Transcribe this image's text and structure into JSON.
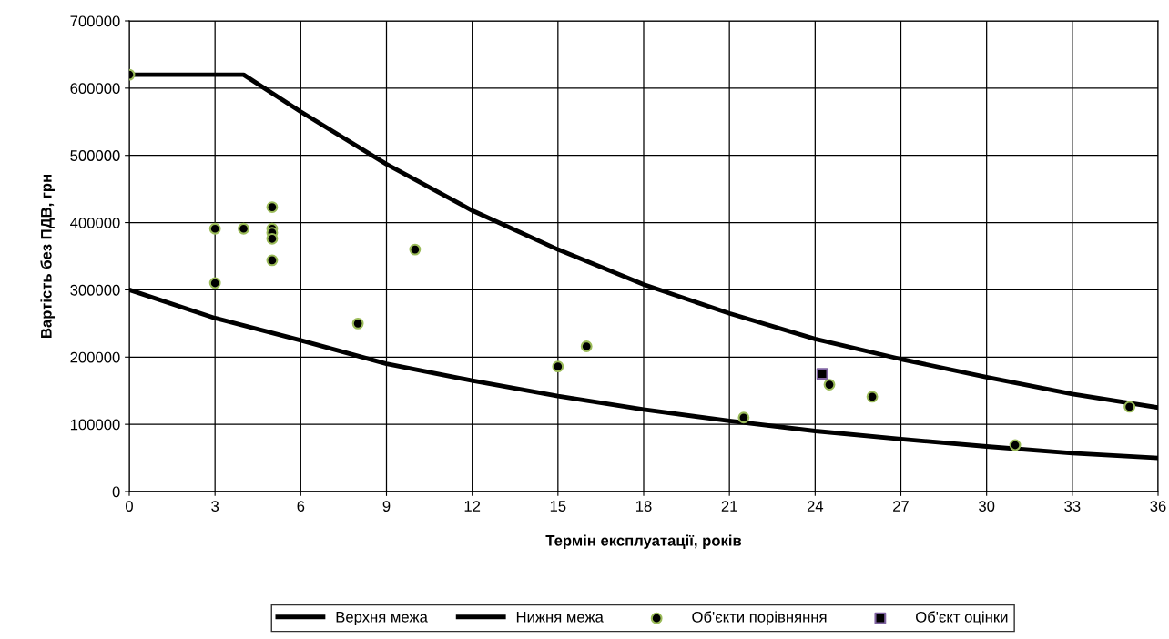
{
  "chart_data": {
    "type": "line",
    "xlabel": "Термін експлуатації, років",
    "ylabel": "Вартість без ПДВ, грн",
    "xlim": [
      0,
      36
    ],
    "xticks": [
      0,
      3,
      6,
      9,
      12,
      15,
      18,
      21,
      24,
      27,
      30,
      33,
      36
    ],
    "ylim": [
      0,
      700000
    ],
    "yticks": [
      0,
      100000,
      200000,
      300000,
      400000,
      500000,
      600000,
      700000
    ],
    "grid": true,
    "legend": "bottom",
    "series": [
      {
        "name": "Верхня межа",
        "color": "#000000",
        "marker": "none",
        "x": [
          0,
          4,
          6,
          9,
          12,
          15,
          18,
          21,
          24,
          27,
          30,
          33,
          36
        ],
        "values": [
          620000,
          620000,
          565000,
          487000,
          418000,
          360000,
          308000,
          265000,
          227000,
          197000,
          170000,
          145000,
          125000
        ]
      },
      {
        "name": "Нижня межа",
        "color": "#000000",
        "marker": "none",
        "x": [
          0,
          3,
          6,
          9,
          12,
          15,
          18,
          21,
          24,
          27,
          30,
          33,
          36
        ],
        "values": [
          300000,
          258000,
          225000,
          190000,
          165000,
          142000,
          122000,
          105000,
          90000,
          78000,
          67000,
          57000,
          50000
        ]
      },
      {
        "name": "Об'єкти порівняння",
        "type": "scatter",
        "color": "#9bbb59",
        "marker": "circle",
        "x": [
          0,
          3,
          3,
          4,
          5,
          5,
          5,
          5,
          5,
          8,
          10,
          15,
          16,
          21.5,
          24.5,
          26,
          31,
          35
        ],
        "values": [
          620000,
          391000,
          310000,
          391000,
          423000,
          391000,
          385000,
          376000,
          344000,
          250000,
          360000,
          186000,
          216000,
          110000,
          159000,
          141000,
          69000,
          126000
        ]
      },
      {
        "name": "Об'єкт оцінки",
        "type": "scatter",
        "color": "#8064a2",
        "marker": "square",
        "x": [
          24.25
        ],
        "values": [
          175000
        ]
      }
    ]
  }
}
